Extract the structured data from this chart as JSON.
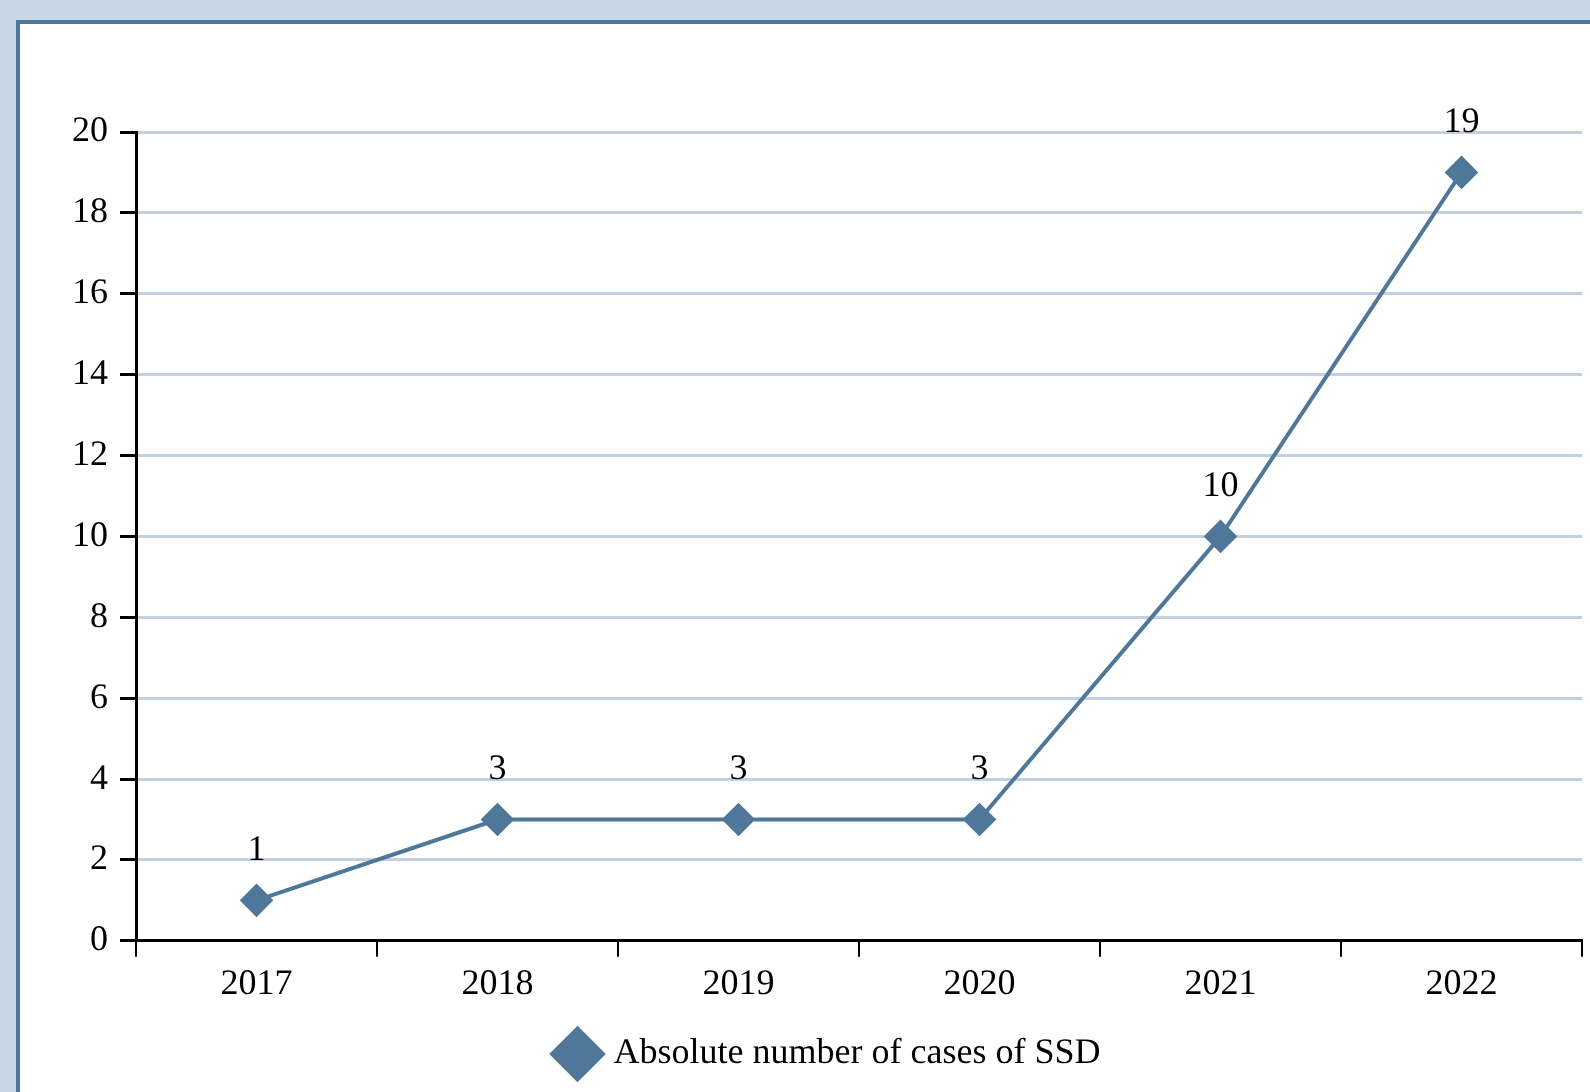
{
  "chart_data": {
    "type": "line",
    "categories": [
      "2017",
      "2018",
      "2019",
      "2020",
      "2021",
      "2022"
    ],
    "series": [
      {
        "name": "Absolute number of cases of SSD",
        "color": "#4f7799",
        "values": [
          1,
          3,
          3,
          3,
          10,
          19
        ]
      }
    ],
    "ylim": [
      0,
      20
    ],
    "yticks": [
      0,
      2,
      4,
      6,
      8,
      10,
      12,
      14,
      16,
      18,
      20
    ],
    "grid": "y",
    "legend": "bottom",
    "marker": "diamond",
    "line_style": "solid",
    "data_labels": true
  }
}
